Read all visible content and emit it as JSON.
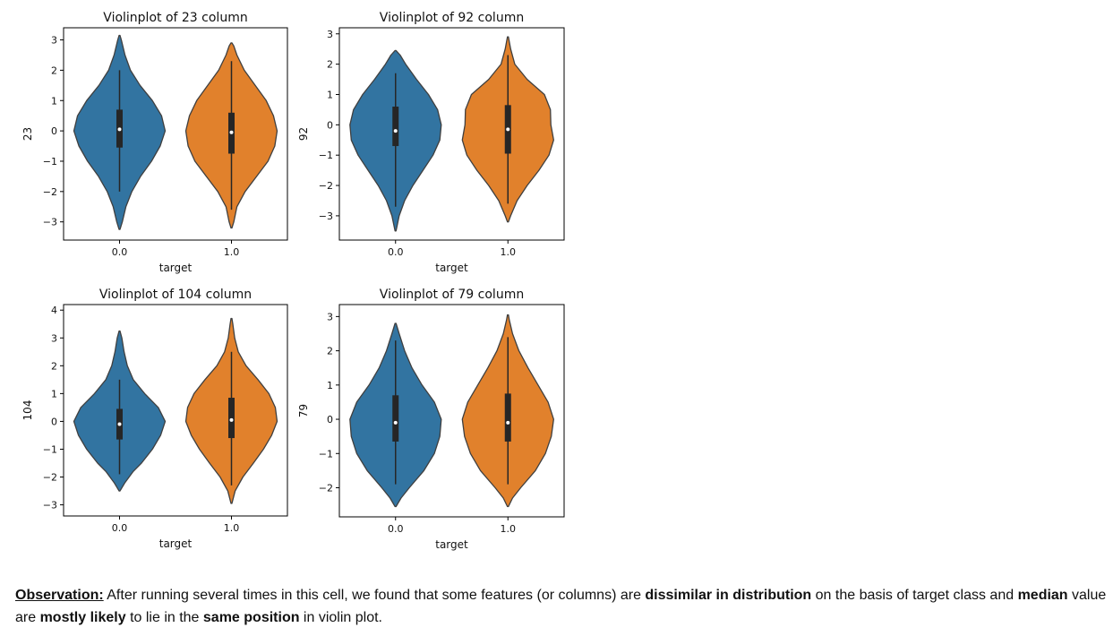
{
  "colors": {
    "class0": "#3274a1",
    "class1": "#e1812c",
    "outline": "#3f3f3f",
    "box": "#262626",
    "median": "#ffffff",
    "frame": "#000000",
    "text": "#111111"
  },
  "chart_data": [
    {
      "type": "violin",
      "title": "Violinplot of 23 column",
      "xlabel": "target",
      "ylabel": "23",
      "categories": [
        "0.0",
        "1.0"
      ],
      "ylim": [
        -3.6,
        3.4
      ],
      "yticks": [
        -3,
        -2,
        -1,
        0,
        1,
        2,
        3
      ],
      "ytick_labels": [
        "−3",
        "−2",
        "−1",
        "0",
        "1",
        "2",
        "3"
      ],
      "grid": false,
      "violins": [
        {
          "category": "0.0",
          "color": "class0",
          "profile": [
            [
              -3.25,
              0.01
            ],
            [
              -3.0,
              0.06
            ],
            [
              -2.5,
              0.14
            ],
            [
              -2.0,
              0.27
            ],
            [
              -1.5,
              0.46
            ],
            [
              -1.0,
              0.7
            ],
            [
              -0.5,
              0.89
            ],
            [
              0.0,
              1.0
            ],
            [
              0.5,
              0.92
            ],
            [
              1.0,
              0.72
            ],
            [
              1.5,
              0.45
            ],
            [
              2.0,
              0.24
            ],
            [
              2.5,
              0.12
            ],
            [
              3.0,
              0.04
            ],
            [
              3.15,
              0.01
            ]
          ],
          "whisker": [
            -2.0,
            2.0
          ],
          "q1": -0.55,
          "q3": 0.7,
          "median": 0.05
        },
        {
          "category": "1.0",
          "color": "class1",
          "profile": [
            [
              -3.2,
              0.01
            ],
            [
              -3.0,
              0.05
            ],
            [
              -2.5,
              0.12
            ],
            [
              -2.0,
              0.3
            ],
            [
              -1.5,
              0.55
            ],
            [
              -1.0,
              0.8
            ],
            [
              -0.5,
              0.95
            ],
            [
              0.0,
              1.0
            ],
            [
              0.5,
              0.92
            ],
            [
              1.0,
              0.76
            ],
            [
              1.5,
              0.52
            ],
            [
              2.0,
              0.28
            ],
            [
              2.5,
              0.12
            ],
            [
              2.8,
              0.05
            ],
            [
              2.9,
              0.01
            ]
          ],
          "whisker": [
            -2.6,
            2.3
          ],
          "q1": -0.75,
          "q3": 0.6,
          "median": -0.05
        }
      ]
    },
    {
      "type": "violin",
      "title": "Violinplot of 92 column",
      "xlabel": "target",
      "ylabel": "92",
      "categories": [
        "0.0",
        "1.0"
      ],
      "ylim": [
        -3.8,
        3.2
      ],
      "yticks": [
        -3,
        -2,
        -1,
        0,
        1,
        2,
        3
      ],
      "ytick_labels": [
        "−3",
        "−2",
        "−1",
        "0",
        "1",
        "2",
        "3"
      ],
      "grid": false,
      "violins": [
        {
          "category": "0.0",
          "color": "class0",
          "profile": [
            [
              -3.5,
              0.01
            ],
            [
              -3.0,
              0.08
            ],
            [
              -2.5,
              0.2
            ],
            [
              -2.0,
              0.38
            ],
            [
              -1.5,
              0.6
            ],
            [
              -1.0,
              0.82
            ],
            [
              -0.5,
              0.97
            ],
            [
              0.0,
              1.0
            ],
            [
              0.5,
              0.92
            ],
            [
              1.0,
              0.72
            ],
            [
              1.5,
              0.46
            ],
            [
              2.0,
              0.22
            ],
            [
              2.3,
              0.1
            ],
            [
              2.45,
              0.01
            ]
          ],
          "whisker": [
            -2.7,
            1.7
          ],
          "q1": -0.7,
          "q3": 0.6,
          "median": -0.2
        },
        {
          "category": "1.0",
          "color": "class1",
          "profile": [
            [
              -3.2,
              0.01
            ],
            [
              -3.0,
              0.06
            ],
            [
              -2.5,
              0.2
            ],
            [
              -2.0,
              0.42
            ],
            [
              -1.5,
              0.68
            ],
            [
              -1.0,
              0.9
            ],
            [
              -0.5,
              1.0
            ],
            [
              0.0,
              0.94
            ],
            [
              0.5,
              0.93
            ],
            [
              1.0,
              0.8
            ],
            [
              1.5,
              0.42
            ],
            [
              2.0,
              0.15
            ],
            [
              2.5,
              0.06
            ],
            [
              2.9,
              0.01
            ]
          ],
          "whisker": [
            -2.6,
            2.3
          ],
          "q1": -0.95,
          "q3": 0.65,
          "median": -0.15
        }
      ]
    },
    {
      "type": "violin",
      "title": "Violinplot of 104 column",
      "xlabel": "target",
      "ylabel": "104",
      "categories": [
        "0.0",
        "1.0"
      ],
      "ylim": [
        -3.4,
        4.2
      ],
      "yticks": [
        -3,
        -2,
        -1,
        0,
        1,
        2,
        3,
        4
      ],
      "ytick_labels": [
        "−3",
        "−2",
        "−1",
        "0",
        "1",
        "2",
        "3",
        "4"
      ],
      "grid": false,
      "violins": [
        {
          "category": "0.0",
          "color": "class0",
          "profile": [
            [
              -2.5,
              0.01
            ],
            [
              -2.2,
              0.12
            ],
            [
              -1.8,
              0.3
            ],
            [
              -1.5,
              0.48
            ],
            [
              -1.0,
              0.72
            ],
            [
              -0.5,
              0.9
            ],
            [
              0.0,
              1.0
            ],
            [
              0.5,
              0.85
            ],
            [
              1.0,
              0.55
            ],
            [
              1.5,
              0.3
            ],
            [
              2.0,
              0.17
            ],
            [
              2.5,
              0.1
            ],
            [
              3.0,
              0.05
            ],
            [
              3.25,
              0.01
            ]
          ],
          "whisker": [
            -1.9,
            1.5
          ],
          "q1": -0.65,
          "q3": 0.45,
          "median": -0.1
        },
        {
          "category": "1.0",
          "color": "class1",
          "profile": [
            [
              -2.95,
              0.01
            ],
            [
              -2.5,
              0.08
            ],
            [
              -2.0,
              0.25
            ],
            [
              -1.5,
              0.48
            ],
            [
              -1.0,
              0.7
            ],
            [
              -0.5,
              0.88
            ],
            [
              0.0,
              1.0
            ],
            [
              0.5,
              0.96
            ],
            [
              1.0,
              0.82
            ],
            [
              1.5,
              0.58
            ],
            [
              2.0,
              0.32
            ],
            [
              2.5,
              0.15
            ],
            [
              3.0,
              0.07
            ],
            [
              3.5,
              0.03
            ],
            [
              3.7,
              0.01
            ]
          ],
          "whisker": [
            -2.3,
            2.5
          ],
          "q1": -0.6,
          "q3": 0.85,
          "median": 0.05
        }
      ]
    },
    {
      "type": "violin",
      "title": "Violinplot of 79 column",
      "xlabel": "target",
      "ylabel": "79",
      "categories": [
        "0.0",
        "1.0"
      ],
      "ylim": [
        -2.85,
        3.35
      ],
      "yticks": [
        -2,
        -1,
        0,
        1,
        2,
        3
      ],
      "ytick_labels": [
        "−2",
        "−1",
        "0",
        "1",
        "2",
        "3"
      ],
      "grid": false,
      "violins": [
        {
          "category": "0.0",
          "color": "class0",
          "profile": [
            [
              -2.55,
              0.01
            ],
            [
              -2.3,
              0.12
            ],
            [
              -2.0,
              0.3
            ],
            [
              -1.5,
              0.62
            ],
            [
              -1.0,
              0.85
            ],
            [
              -0.5,
              0.97
            ],
            [
              0.0,
              1.0
            ],
            [
              0.5,
              0.85
            ],
            [
              1.0,
              0.58
            ],
            [
              1.5,
              0.36
            ],
            [
              2.0,
              0.2
            ],
            [
              2.5,
              0.08
            ],
            [
              2.8,
              0.01
            ]
          ],
          "whisker": [
            -1.9,
            2.3
          ],
          "q1": -0.65,
          "q3": 0.7,
          "median": -0.1
        },
        {
          "category": "1.0",
          "color": "class1",
          "profile": [
            [
              -2.55,
              0.01
            ],
            [
              -2.3,
              0.1
            ],
            [
              -2.0,
              0.28
            ],
            [
              -1.5,
              0.6
            ],
            [
              -1.0,
              0.82
            ],
            [
              -0.5,
              0.95
            ],
            [
              0.0,
              1.0
            ],
            [
              0.5,
              0.88
            ],
            [
              1.0,
              0.66
            ],
            [
              1.5,
              0.44
            ],
            [
              2.0,
              0.24
            ],
            [
              2.5,
              0.1
            ],
            [
              2.9,
              0.03
            ],
            [
              3.05,
              0.01
            ]
          ],
          "whisker": [
            -1.9,
            2.4
          ],
          "q1": -0.65,
          "q3": 0.75,
          "median": -0.1
        }
      ]
    }
  ],
  "observation": {
    "label": "Observation:",
    "t1": " After running several times in this cell, we found that some features (or columns) are ",
    "b1": "dissimilar in distribution",
    "t2": " on the basis of target class and ",
    "b2": "median",
    "t3": " value are ",
    "b3": "mostly likely",
    "t4": " to lie in the ",
    "b4": "same position",
    "t5": " in violin plot."
  }
}
